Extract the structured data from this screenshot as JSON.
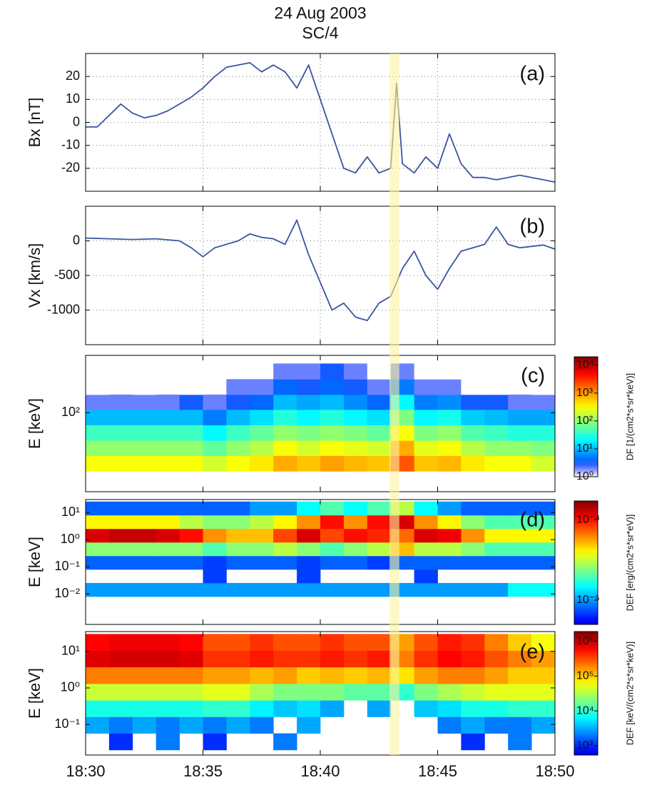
{
  "chart_data": [
    {
      "type": "line",
      "title": "24 Aug 2003",
      "subtitle": "SC/4",
      "panel_label": "(a)",
      "ylabel": "Bx [nT]",
      "color": "#3a55a0",
      "highlight": [
        "18:42:57",
        "18:43:22"
      ],
      "highlight_color": "#fdf3a0",
      "x": [
        "18:30:00",
        "18:30:30",
        "18:31:00",
        "18:31:30",
        "18:32:00",
        "18:32:30",
        "18:33:00",
        "18:33:30",
        "18:34:00",
        "18:34:30",
        "18:35:00",
        "18:35:30",
        "18:36:00",
        "18:36:30",
        "18:37:00",
        "18:37:30",
        "18:38:00",
        "18:38:30",
        "18:39:00",
        "18:39:30",
        "18:40:00",
        "18:40:30",
        "18:41:00",
        "18:41:30",
        "18:42:00",
        "18:42:30",
        "18:43:00",
        "18:43:15",
        "18:43:30",
        "18:44:00",
        "18:44:30",
        "18:45:00",
        "18:45:30",
        "18:46:00",
        "18:46:30",
        "18:47:00",
        "18:47:30",
        "18:48:00",
        "18:48:30",
        "18:49:00",
        "18:49:30",
        "18:50:00"
      ],
      "values": [
        -2,
        -2,
        3,
        8,
        4,
        2,
        3,
        5,
        8,
        11,
        15,
        20,
        24,
        25,
        26,
        22,
        25,
        22,
        15,
        25,
        10,
        -5,
        -20,
        -22,
        -15,
        -22,
        -20,
        17,
        -18,
        -22,
        -15,
        -20,
        -5,
        -18,
        -24,
        -24,
        -25,
        -24,
        -23,
        -24,
        -25,
        -26
      ],
      "xlim": [
        "18:30",
        "18:50"
      ],
      "xticks": [
        "18:30",
        "18:35",
        "18:40",
        "18:45",
        "18:50"
      ],
      "ylim": [
        -30,
        30
      ],
      "yticks": [
        -20,
        -10,
        0,
        10,
        20
      ],
      "grid": true
    },
    {
      "type": "line",
      "panel_label": "(b)",
      "ylabel": "Vx [km/s]",
      "color": "#3a55a0",
      "x": [
        "18:30:00",
        "18:31:00",
        "18:32:00",
        "18:33:00",
        "18:34:00",
        "18:34:30",
        "18:35:00",
        "18:35:30",
        "18:36:00",
        "18:36:30",
        "18:37:00",
        "18:37:30",
        "18:38:00",
        "18:38:30",
        "18:39:00",
        "18:39:30",
        "18:40:00",
        "18:40:30",
        "18:41:00",
        "18:41:30",
        "18:42:00",
        "18:42:30",
        "18:43:00",
        "18:43:30",
        "18:44:00",
        "18:44:30",
        "18:45:00",
        "18:45:30",
        "18:46:00",
        "18:46:30",
        "18:47:00",
        "18:47:30",
        "18:48:00",
        "18:48:30",
        "18:49:00",
        "18:49:30",
        "18:50:00"
      ],
      "values": [
        40,
        30,
        20,
        30,
        0,
        -100,
        -230,
        -100,
        -50,
        0,
        100,
        50,
        30,
        -50,
        300,
        -200,
        -600,
        -1000,
        -900,
        -1100,
        -1150,
        -900,
        -800,
        -400,
        -150,
        -500,
        -700,
        -400,
        -150,
        -100,
        -50,
        200,
        -50,
        -100,
        -80,
        -60,
        -120
      ],
      "xlim": [
        "18:30",
        "18:50"
      ],
      "xticks": [
        "18:30",
        "18:35",
        "18:40",
        "18:45",
        "18:50"
      ],
      "ylim": [
        -1500,
        500
      ],
      "yticks": [
        -1000,
        -500,
        0
      ],
      "grid": true
    },
    {
      "type": "spectrogram",
      "panel_label": "(c)",
      "ylabel": "E [keV]",
      "ylog": true,
      "colormap": "jet-white",
      "x": [
        "18:30",
        "18:31",
        "18:32",
        "18:33",
        "18:34",
        "18:35",
        "18:36",
        "18:37",
        "18:38",
        "18:39",
        "18:40",
        "18:41",
        "18:42",
        "18:43",
        "18:44",
        "18:45",
        "18:46",
        "18:47",
        "18:48",
        "18:49",
        "18:50"
      ],
      "y": [
        41,
        52,
        65.5,
        83,
        105,
        132,
        167,
        212
      ],
      "values": [
        [
          300,
          300,
          300,
          300,
          300,
          200,
          300,
          400,
          800,
          600,
          900,
          700,
          600,
          2000,
          600,
          700,
          400,
          300,
          300,
          200
        ],
        [
          100,
          100,
          100,
          100,
          100,
          60,
          100,
          150,
          300,
          200,
          300,
          250,
          200,
          800,
          250,
          300,
          150,
          100,
          100,
          80
        ],
        [
          40,
          40,
          40,
          40,
          40,
          20,
          40,
          60,
          100,
          80,
          100,
          80,
          60,
          300,
          80,
          100,
          50,
          40,
          30,
          30
        ],
        [
          10,
          10,
          10,
          10,
          10,
          5,
          10,
          15,
          30,
          20,
          30,
          20,
          15,
          80,
          20,
          25,
          12,
          10,
          8,
          8
        ],
        [
          2,
          2,
          2,
          2,
          3,
          2,
          3,
          4,
          10,
          8,
          10,
          6,
          4,
          20,
          5,
          6,
          3,
          3,
          2,
          2
        ],
        [
          1,
          null,
          1,
          null,
          1,
          null,
          2,
          2,
          4,
          3,
          4,
          3,
          2,
          5,
          2,
          2,
          1,
          1,
          null,
          1
        ],
        [
          null,
          null,
          null,
          null,
          null,
          null,
          null,
          null,
          2,
          2,
          3,
          2,
          1,
          2,
          1,
          1,
          null,
          null,
          null,
          null
        ]
      ],
      "xlim": [
        "18:30",
        "18:50"
      ],
      "xticks": [
        "18:30",
        "18:35",
        "18:40",
        "18:45",
        "18:50"
      ],
      "ylim": [
        30,
        240
      ],
      "yticks": [
        {
          "value": 100,
          "label": "10²"
        }
      ],
      "clim": [
        1,
        20000
      ],
      "clog": true,
      "clabel": "DF [1/(cm2*s*sr*keV)]",
      "cticks": [
        {
          "value": 1,
          "label": "10⁰"
        },
        {
          "value": 10,
          "label": "10¹"
        },
        {
          "value": 100,
          "label": "10²"
        },
        {
          "value": 1000,
          "label": "10³"
        },
        {
          "value": 10000,
          "label": "10⁴"
        }
      ]
    },
    {
      "type": "spectrogram",
      "panel_label": "(d)",
      "ylabel": "E [keV]",
      "ylog": true,
      "colormap": "jet",
      "x": [
        "18:30",
        "18:31",
        "18:32",
        "18:33",
        "18:34",
        "18:35",
        "18:36",
        "18:37",
        "18:38",
        "18:39",
        "18:40",
        "18:41",
        "18:42",
        "18:43",
        "18:44",
        "18:45",
        "18:46",
        "18:47",
        "18:48",
        "18:49",
        "18:50"
      ],
      "y": [
        0.008,
        0.0253,
        0.08,
        0.253,
        0.8,
        2.53,
        8,
        25.3
      ],
      "values": [
        [
          1e-05,
          1e-05,
          1e-05,
          1e-05,
          1e-05,
          1e-05,
          1e-05,
          1e-05,
          1e-05,
          1e-05,
          1e-05,
          1e-05,
          1e-05,
          1e-05,
          1e-05,
          1e-05,
          1e-05,
          1e-05,
          1.5e-05,
          1.5e-05
        ],
        [
          null,
          null,
          null,
          null,
          null,
          7e-06,
          null,
          null,
          null,
          7e-06,
          null,
          null,
          null,
          null,
          7e-06,
          null,
          null,
          null,
          null,
          null
        ],
        [
          8e-06,
          8e-06,
          8e-06,
          8e-06,
          8e-06,
          7e-06,
          8e-06,
          8e-06,
          8e-06,
          7e-06,
          8e-06,
          8e-06,
          7e-06,
          8e-06,
          8e-06,
          8e-06,
          8e-06,
          8e-06,
          8e-06,
          8e-06
        ],
        [
          2.5e-05,
          2.5e-05,
          2.5e-05,
          2.5e-05,
          2.5e-05,
          2e-05,
          2.5e-05,
          2.5e-05,
          3e-05,
          2.5e-05,
          2e-05,
          2.5e-05,
          3e-05,
          5e-05,
          3e-05,
          3e-05,
          2.5e-05,
          2e-05,
          2e-05,
          2e-05
        ],
        [
          0.00012,
          0.00013,
          0.00013,
          0.00012,
          0.0001,
          6e-05,
          5e-05,
          5e-05,
          8e-05,
          0.00012,
          8e-05,
          0.0001,
          9e-05,
          7e-05,
          0.00012,
          0.00011,
          6e-05,
          4e-05,
          4e-05,
          4e-05
        ],
        [
          4e-05,
          4e-05,
          4e-05,
          4e-05,
          3e-05,
          2.5e-05,
          2.5e-05,
          3e-05,
          4e-05,
          6e-05,
          0.0001,
          6e-05,
          0.0001,
          0.00012,
          6e-05,
          4e-05,
          2.5e-05,
          2e-05,
          2e-05,
          2e-05
        ],
        [
          8e-06,
          8e-06,
          8e-06,
          8e-06,
          8e-06,
          8e-06,
          8e-06,
          1e-05,
          1e-05,
          1.5e-05,
          2e-05,
          1.5e-05,
          2e-05,
          3e-05,
          1.5e-05,
          1e-05,
          8e-06,
          8e-06,
          8e-06,
          8e-06
        ]
      ],
      "xlim": [
        "18:30",
        "18:50"
      ],
      "xticks": [
        "18:30",
        "18:35",
        "18:40",
        "18:45",
        "18:50"
      ],
      "ylim": [
        0.00075,
        30
      ],
      "yticks": [
        {
          "value": 0.01,
          "label": "10⁻²"
        },
        {
          "value": 0.1,
          "label": "10⁻¹"
        },
        {
          "value": 1,
          "label": "10⁰"
        },
        {
          "value": 10,
          "label": "10¹"
        }
      ],
      "clim": [
        5e-06,
        0.00017
      ],
      "clog": true,
      "clabel": "DEF [erg/(cm2*s*sr*eV)]",
      "cticks": [
        {
          "value": 1e-05,
          "label": "10⁻⁵"
        },
        {
          "value": 0.0001,
          "label": "10⁻⁴"
        }
      ]
    },
    {
      "type": "spectrogram",
      "panel_label": "(e)",
      "ylabel": "E [keV]",
      "ylog": true,
      "colormap": "jet",
      "xticklabels": true,
      "x": [
        "18:30",
        "18:31",
        "18:32",
        "18:33",
        "18:34",
        "18:35",
        "18:36",
        "18:37",
        "18:38",
        "18:39",
        "18:40",
        "18:41",
        "18:42",
        "18:43",
        "18:44",
        "18:45",
        "18:46",
        "18:47",
        "18:48",
        "18:49",
        "18:50"
      ],
      "y": [
        0.02,
        0.057,
        0.162,
        0.46,
        1.31,
        3.73,
        10.6,
        30
      ],
      "values": [
        [
          null,
          1000,
          null,
          2000,
          null,
          1000,
          null,
          null,
          2000,
          null,
          null,
          null,
          null,
          null,
          null,
          null,
          1000,
          null,
          2000,
          null
        ],
        [
          3000,
          2000,
          3000,
          2000,
          3000,
          2000,
          3000,
          2000,
          null,
          3000,
          null,
          null,
          null,
          null,
          null,
          2000,
          3000,
          2000,
          2000,
          3000
        ],
        [
          8000,
          8000,
          8000,
          8000,
          8000,
          10000,
          10000,
          6000,
          4000,
          5000,
          3000,
          null,
          3000,
          null,
          4000,
          5000,
          8000,
          8000,
          10000,
          10000
        ],
        [
          40000,
          40000,
          40000,
          40000,
          40000,
          50000,
          50000,
          30000,
          20000,
          20000,
          20000,
          15000,
          15000,
          10000,
          20000,
          30000,
          40000,
          50000,
          50000,
          50000
        ],
        [
          200000,
          200000,
          200000,
          200000,
          200000,
          150000,
          150000,
          120000,
          150000,
          100000,
          120000,
          100000,
          120000,
          80000,
          150000,
          200000,
          200000,
          150000,
          100000,
          100000
        ],
        [
          800000,
          900000,
          900000,
          900000,
          800000,
          400000,
          400000,
          500000,
          400000,
          400000,
          500000,
          400000,
          500000,
          200000,
          400000,
          600000,
          500000,
          300000,
          200000,
          150000
        ],
        [
          600000,
          700000,
          700000,
          700000,
          600000,
          300000,
          300000,
          400000,
          300000,
          300000,
          400000,
          300000,
          300000,
          150000,
          300000,
          500000,
          400000,
          200000,
          100000,
          60000
        ]
      ],
      "xlim": [
        "18:30",
        "18:50"
      ],
      "xticks": [
        "18:30",
        "18:35",
        "18:40",
        "18:45",
        "18:50"
      ],
      "ylim": [
        0.0145,
        35
      ],
      "yticks": [
        {
          "value": 0.1,
          "label": "10⁻¹"
        },
        {
          "value": 1,
          "label": "10⁰"
        },
        {
          "value": 10,
          "label": "10¹"
        }
      ],
      "clim": [
        540,
        1900000
      ],
      "clog": true,
      "clabel": "DEF [keV/(cm2*s*sr*keV)]",
      "cticks": [
        {
          "value": 1000,
          "label": "10³"
        },
        {
          "value": 10000,
          "label": "10⁴"
        },
        {
          "value": 100000,
          "label": "10⁵"
        },
        {
          "value": 1000000,
          "label": "10⁶"
        }
      ]
    }
  ]
}
